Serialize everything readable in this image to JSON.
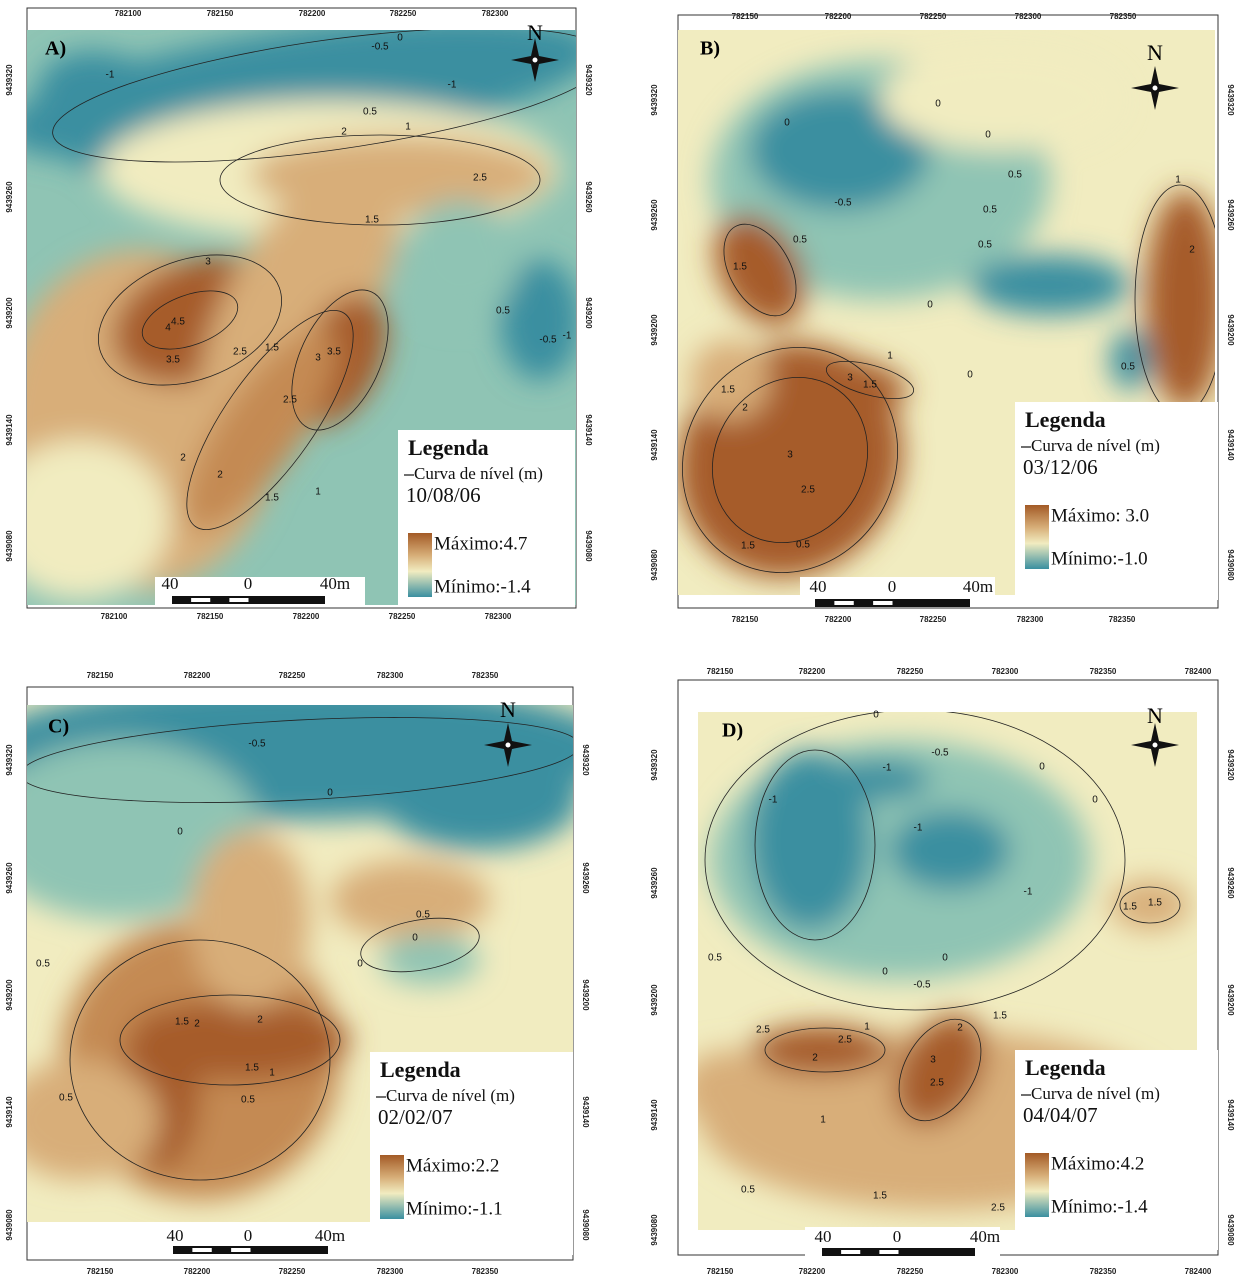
{
  "panels": [
    {
      "label": "A)",
      "north": "N",
      "top_ticks": [
        "782100",
        "782150",
        "782200",
        "782250",
        "782300"
      ],
      "bottom_ticks": [
        "782100",
        "782150",
        "782200",
        "782250",
        "782300"
      ],
      "left_ticks": [
        "9439320",
        "9439260",
        "9439200",
        "9439140",
        "9439080"
      ],
      "right_ticks": [
        "9439320",
        "9439260",
        "9439200",
        "9439140",
        "9439080"
      ],
      "contour_labels": [
        "-0.5",
        "0",
        "-1",
        "-1",
        "0.5",
        "1",
        "2",
        "2.5",
        "1.5",
        "3",
        "4.5",
        "4",
        "3.5",
        "2.5",
        "1.5",
        "3",
        "3.5",
        "2.5",
        "2",
        "2",
        "1.5",
        "1",
        "0.5",
        "-0.5",
        "-1"
      ],
      "legend": {
        "title": "Legenda",
        "line": "Curva de nível (m)",
        "date": "10/08/06",
        "max": "Máximo:4.7",
        "min": "Mínimo:-1.4"
      },
      "scale": [
        "40",
        "0",
        "40m"
      ]
    },
    {
      "label": "B)",
      "north": "N",
      "top_ticks": [
        "782150",
        "782200",
        "782250",
        "782300",
        "782350"
      ],
      "bottom_ticks": [
        "782150",
        "782200",
        "782250",
        "782300",
        "782350"
      ],
      "left_ticks": [
        "9439320",
        "9439260",
        "9439200",
        "9439140",
        "9439080"
      ],
      "right_ticks": [
        "9439320",
        "9439260",
        "9439200",
        "9439140",
        "9439080"
      ],
      "contour_labels": [
        "0",
        "0",
        "0",
        "0.5",
        "-0.5",
        "0.5",
        "1",
        "2",
        "1.5",
        "0.5",
        "0.5",
        "0",
        "1",
        "3",
        "1.5",
        "1.5",
        "2",
        "3",
        "2.5",
        "1.5",
        "0.5",
        "0.5",
        "0"
      ],
      "legend": {
        "title": "Legenda",
        "line": "Curva de nível (m)",
        "date": "03/12/06",
        "max": "Máximo: 3.0",
        "min": "Mínimo:-1.0"
      },
      "scale": [
        "40",
        "0",
        "40m"
      ]
    },
    {
      "label": "C)",
      "north": "N",
      "top_ticks": [
        "782150",
        "782200",
        "782250",
        "782300",
        "782350"
      ],
      "bottom_ticks": [
        "782150",
        "782200",
        "782250",
        "782300",
        "782350"
      ],
      "left_ticks": [
        "9439320",
        "9439260",
        "9439200",
        "9439140",
        "9439080"
      ],
      "right_ticks": [
        "9439320",
        "9439260",
        "9439200",
        "9439140",
        "9439080"
      ],
      "contour_labels": [
        "-0.5",
        "0",
        "0",
        "0.5",
        "0",
        "0",
        "0.5",
        "1.5",
        "2",
        "2",
        "1.5",
        "1",
        "0.5",
        "0.5"
      ],
      "legend": {
        "title": "Legenda",
        "line": "Curva de nível (m)",
        "date": "02/02/07",
        "max": "Máximo:2.2",
        "min": "Mínimo:-1.1"
      },
      "scale": [
        "40",
        "0",
        "40m"
      ]
    },
    {
      "label": "D)",
      "north": "N",
      "top_ticks": [
        "782150",
        "782200",
        "782250",
        "782300",
        "782350",
        "782400"
      ],
      "bottom_ticks": [
        "782150",
        "782200",
        "782250",
        "782300",
        "782350",
        "782400"
      ],
      "left_ticks": [
        "9439320",
        "9439260",
        "9439200",
        "9439140",
        "9439080"
      ],
      "right_ticks": [
        "9439320",
        "9439260",
        "9439200",
        "9439140",
        "9439080"
      ],
      "contour_labels": [
        "0",
        "-0.5",
        "-1",
        "-1",
        "-1",
        "0",
        "0",
        "-1",
        "1.5",
        "1.5",
        "0.5",
        "0",
        "-0.5",
        "0",
        "1",
        "2",
        "1.5",
        "2.5",
        "2.5",
        "2",
        "3",
        "2.5",
        "1",
        "0.5",
        "1.5",
        "2.5"
      ],
      "legend": {
        "title": "Legenda",
        "line": "Curva de nível (m)",
        "date": "04/04/07",
        "max": "Máximo:4.2",
        "min": "Mínimo:-1.4"
      },
      "scale": [
        "40",
        "0",
        "40m"
      ]
    }
  ]
}
